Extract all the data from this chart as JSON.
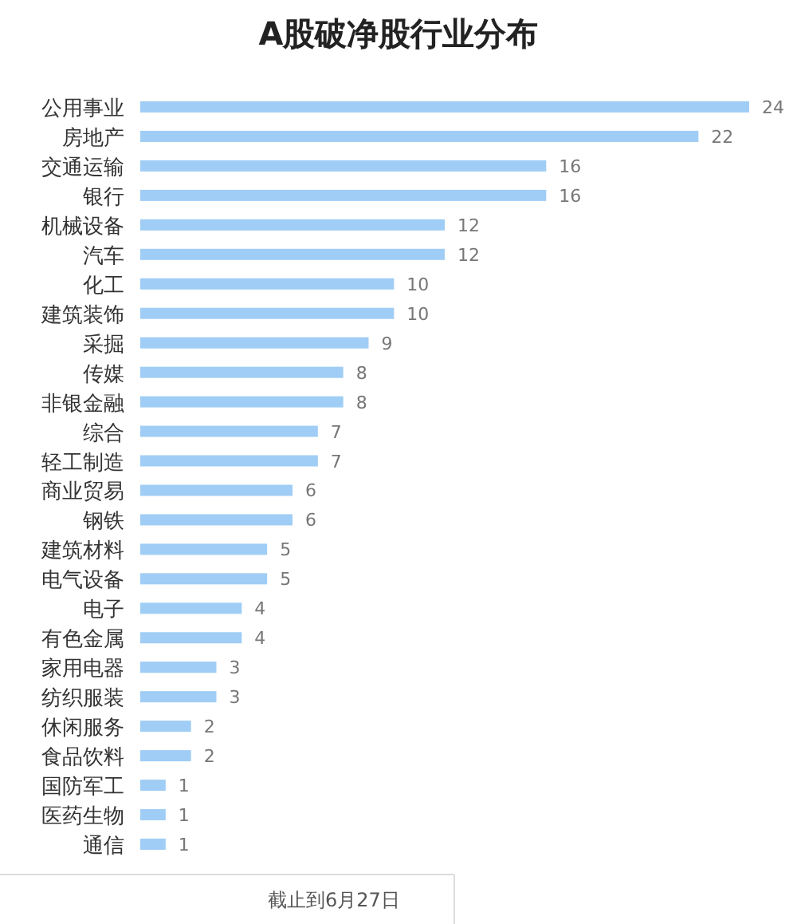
{
  "chart_data": {
    "type": "bar",
    "orientation": "horizontal",
    "title": "A股破净股行业分布",
    "categories": [
      "公用事业",
      "房地产",
      "交通运输",
      "银行",
      "机械设备",
      "汽车",
      "化工",
      "建筑装饰",
      "采掘",
      "传媒",
      "非银金融",
      "综合",
      "轻工制造",
      "商业贸易",
      "钢铁",
      "建筑材料",
      "电气设备",
      "电子",
      "有色金属",
      "家用电器",
      "纺织服装",
      "休闲服务",
      "食品饮料",
      "国防军工",
      "医药生物",
      "通信"
    ],
    "values": [
      24,
      22,
      16,
      16,
      12,
      12,
      10,
      10,
      9,
      8,
      8,
      7,
      7,
      6,
      6,
      5,
      5,
      4,
      4,
      3,
      3,
      2,
      2,
      1,
      1,
      1
    ],
    "color": "#9fcdf5",
    "data_labels": true,
    "annotations": [
      "截止到6月27日"
    ]
  }
}
